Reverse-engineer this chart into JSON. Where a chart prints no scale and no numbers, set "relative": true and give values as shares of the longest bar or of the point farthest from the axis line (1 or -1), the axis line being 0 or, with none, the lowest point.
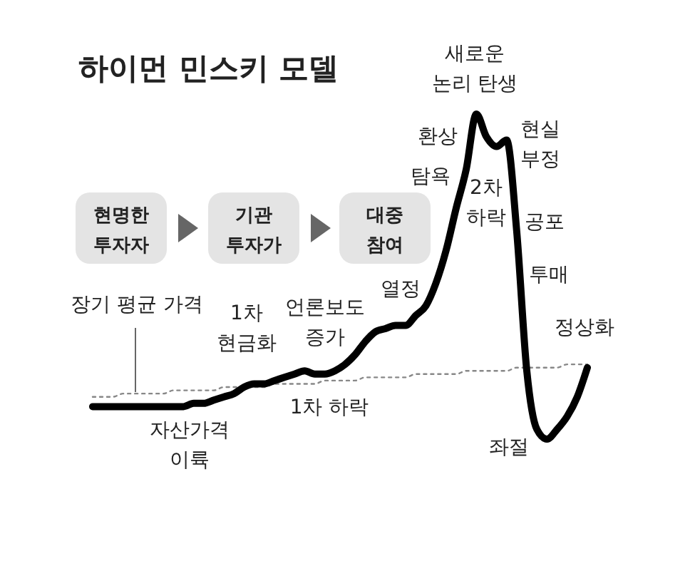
{
  "chart_data": {
    "type": "line",
    "relative": true,
    "title": "하이먼 민스키 모델",
    "annotations": [
      "새로운\n논리 탄생",
      "환상",
      "탐욕",
      "2차\n하락",
      "현실\n부정",
      "공포",
      "투매",
      "정상화",
      "좌절",
      "열정",
      "언론보도\n증가",
      "1차\n현금화",
      "1차 하락",
      "자산가격\n이륙",
      "장기 평균 가격",
      "현명한\n투자자",
      "기관\n투자가",
      "대중\n참여"
    ],
    "categories": [
      null,
      null,
      null,
      null,
      null,
      null,
      null,
      null,
      null,
      null,
      null,
      null,
      null,
      null,
      null,
      null,
      null,
      null,
      null,
      null,
      null,
      null,
      null,
      null,
      null,
      null,
      null,
      null,
      null,
      null,
      null,
      null,
      null,
      null,
      null,
      null,
      null,
      null,
      null,
      null,
      null,
      null,
      null,
      null,
      null,
      null,
      null,
      null,
      null,
      null
    ],
    "series": [
      {
        "color": "#000000",
        "line_style": "solid",
        "values": [
          0.1,
          0.1,
          0.1,
          0.1,
          0.1,
          0.1,
          0.1,
          0.1,
          0.1,
          0.1,
          0.11,
          0.11,
          0.12,
          0.13,
          0.14,
          0.16,
          0.17,
          0.17,
          0.18,
          0.19,
          0.2,
          0.21,
          0.2,
          0.2,
          0.21,
          0.23,
          0.26,
          0.3,
          0.33,
          0.34,
          0.35,
          0.35,
          0.38,
          0.41,
          0.48,
          0.58,
          0.71,
          0.83,
          1,
          0.93,
          0.9,
          0.92,
          0.64,
          0.21,
          0.03,
          0,
          0.03,
          0.07,
          0.13,
          0.22
        ]
      },
      {
        "color": "#888888",
        "line_style": "dotted",
        "values": [
          0.13,
          0.13,
          0.13,
          0.14,
          0.14,
          0.14,
          0.14,
          0.14,
          0.15,
          0.15,
          0.15,
          0.15,
          0.15,
          0.16,
          0.16,
          0.16,
          0.16,
          0.16,
          0.17,
          0.17,
          0.17,
          0.17,
          0.17,
          0.18,
          0.18,
          0.18,
          0.18,
          0.19,
          0.19,
          0.19,
          0.19,
          0.19,
          0.2,
          0.2,
          0.2,
          0.2,
          0.2,
          0.21,
          0.21,
          0.21,
          0.21,
          0.21,
          0.22,
          0.22,
          0.22,
          0.22,
          0.22,
          0.23,
          0.23,
          0.23
        ]
      }
    ]
  }
}
